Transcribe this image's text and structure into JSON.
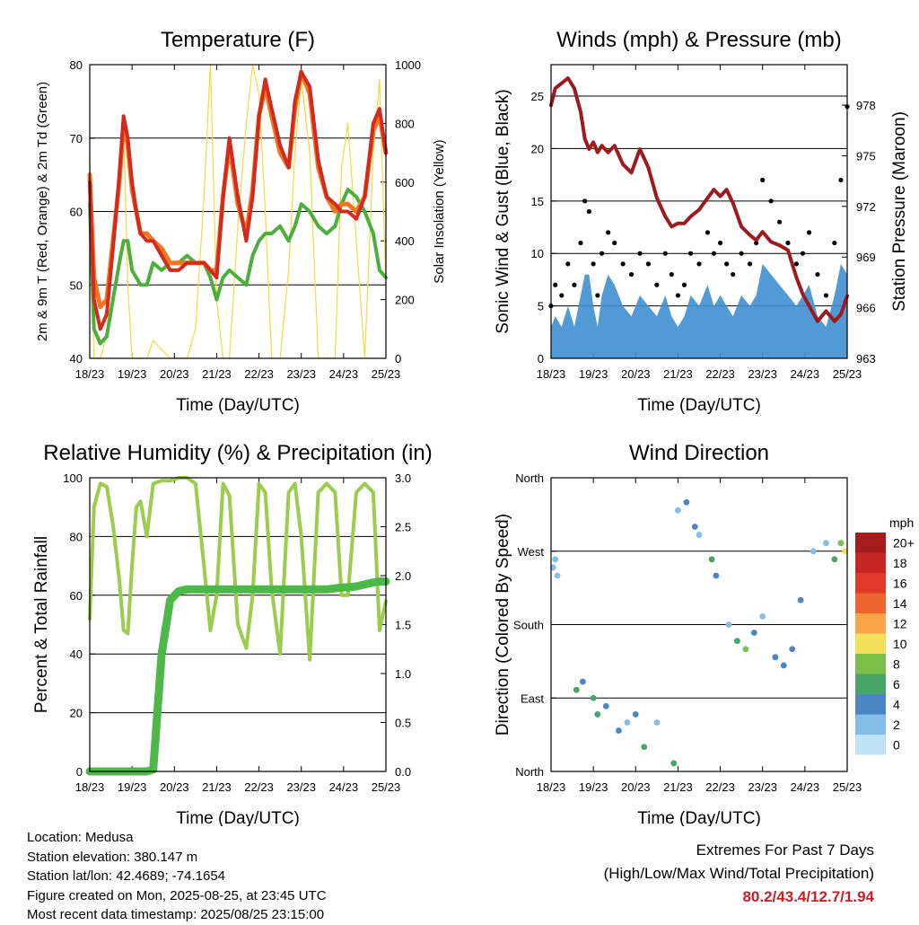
{
  "colors": {
    "red_2m": "#d42a1e",
    "orange_9m": "#f07820",
    "green_td": "#4caf3c",
    "solar": "#f5d842",
    "wind_blue": "#3f8fd2",
    "gust_black": "#000000",
    "pressure_maroon": "#9c1b1f",
    "rh_green": "#9acd4e",
    "precip_green": "#4cb848"
  },
  "x_ticks": [
    "18/23",
    "19/23",
    "20/23",
    "21/23",
    "22/23",
    "23/23",
    "24/23",
    "25/23"
  ],
  "chart_data": [
    {
      "type": "line",
      "title": "Temperature (F)",
      "xlabel": "Time (Day/UTC)",
      "ylabel": "2m & 9m T (Red, Orange) & 2m Td (Green)",
      "ylabel_right": "Solar Insolation (Yellow)",
      "ylim": [
        40,
        80
      ],
      "ylim_right": [
        0,
        1000
      ],
      "yticks": [
        40,
        50,
        60,
        70,
        80
      ],
      "yticks_right": [
        0,
        200,
        400,
        600,
        800,
        1000
      ],
      "x": [
        0,
        0.1,
        0.25,
        0.4,
        0.55,
        0.7,
        0.8,
        0.9,
        1.0,
        1.1,
        1.2,
        1.35,
        1.5,
        1.7,
        1.9,
        2.1,
        2.3,
        2.5,
        2.7,
        2.85,
        3.0,
        3.15,
        3.3,
        3.5,
        3.7,
        3.85,
        4.0,
        4.15,
        4.3,
        4.5,
        4.7,
        4.85,
        5.0,
        5.2,
        5.4,
        5.6,
        5.8,
        5.95,
        6.1,
        6.3,
        6.5,
        6.7,
        6.85,
        7.0
      ],
      "series": [
        {
          "name": "2m T",
          "values": [
            64,
            48,
            44,
            46,
            55,
            65,
            73,
            70,
            64,
            60,
            57,
            56,
            56,
            54,
            52,
            52,
            53,
            53,
            53,
            52,
            51,
            62,
            70,
            62,
            56,
            62,
            73,
            78,
            74,
            69,
            66,
            75,
            79,
            77,
            67,
            62,
            61,
            60,
            60,
            59,
            62,
            72,
            74,
            68
          ]
        },
        {
          "name": "9m T",
          "values": [
            65,
            51,
            47,
            48,
            56,
            64,
            72,
            69,
            63,
            60,
            57,
            57,
            56,
            55,
            53,
            53,
            53,
            53,
            53,
            52,
            52,
            62,
            69,
            61,
            57,
            63,
            73,
            77,
            73,
            68,
            66,
            74,
            79,
            76,
            66,
            62,
            60,
            61,
            61,
            60,
            62,
            71,
            73,
            68
          ]
        },
        {
          "name": "2m Td",
          "values": [
            61,
            44,
            42,
            43,
            48,
            53,
            56,
            56,
            52,
            51,
            50,
            50,
            53,
            52,
            53,
            53,
            54,
            53,
            53,
            51,
            48,
            51,
            52,
            51,
            50,
            54,
            56,
            57,
            57,
            58,
            56,
            58,
            61,
            60,
            58,
            57,
            58,
            61,
            63,
            62,
            60,
            57,
            52,
            51
          ]
        },
        {
          "name": "Solar",
          "values": [
            700,
            0,
            0,
            80,
            350,
            650,
            800,
            250,
            0,
            0,
            0,
            0,
            60,
            30,
            0,
            0,
            0,
            100,
            550,
            1000,
            200,
            0,
            0,
            450,
            800,
            1000,
            900,
            500,
            0,
            0,
            300,
            700,
            950,
            700,
            0,
            0,
            0,
            650,
            800,
            400,
            0,
            700,
            950,
            250
          ]
        }
      ]
    },
    {
      "type": "line",
      "title": "Winds (mph) & Pressure (mb)",
      "xlabel": "Time (Day/UTC)",
      "ylabel": "Sonic Wind & Gust (Blue, Black)",
      "ylabel_right": "Station Pressure (Maroon)",
      "ylim": [
        0,
        28
      ],
      "ylim_right": [
        963,
        980.4
      ],
      "yticks": [
        0,
        5,
        10,
        15,
        20,
        25
      ],
      "yticks_right": [
        963,
        966,
        969,
        972,
        975,
        978
      ],
      "x": [
        0,
        0.1,
        0.25,
        0.4,
        0.55,
        0.7,
        0.8,
        0.9,
        1.0,
        1.1,
        1.2,
        1.35,
        1.5,
        1.7,
        1.9,
        2.1,
        2.3,
        2.5,
        2.7,
        2.85,
        3.0,
        3.15,
        3.3,
        3.5,
        3.7,
        3.85,
        4.0,
        4.15,
        4.3,
        4.5,
        4.7,
        4.85,
        5.0,
        5.2,
        5.4,
        5.6,
        5.8,
        5.95,
        6.1,
        6.3,
        6.5,
        6.7,
        6.85,
        7.0
      ],
      "series": [
        {
          "name": "Sonic Wind",
          "values": [
            3,
            4,
            3,
            5,
            3,
            6,
            8,
            8,
            5,
            3,
            6,
            8,
            7,
            5,
            4,
            6,
            5,
            4,
            6,
            4,
            3,
            4,
            6,
            5,
            7,
            5,
            6,
            5,
            4,
            6,
            5,
            6,
            9,
            8,
            7,
            6,
            5,
            6,
            7,
            4,
            3,
            6,
            9,
            8
          ]
        },
        {
          "name": "Gust",
          "values": [
            5,
            7,
            6,
            9,
            7,
            11,
            15,
            14,
            9,
            6,
            10,
            12,
            11,
            9,
            8,
            10,
            9,
            7,
            10,
            8,
            6,
            7,
            10,
            9,
            12,
            10,
            11,
            9,
            8,
            10,
            9,
            11,
            17,
            15,
            13,
            11,
            9,
            10,
            12,
            8,
            6,
            11,
            17,
            24
          ]
        },
        {
          "name": "Pressure",
          "values": [
            978.0,
            979.0,
            979.3,
            979.6,
            979.0,
            977.6,
            976.0,
            975.4,
            975.8,
            975.2,
            975.6,
            975.2,
            975.6,
            974.5,
            974.0,
            975.4,
            974.3,
            972.5,
            971.4,
            970.8,
            971.0,
            971.0,
            971.4,
            971.8,
            972.5,
            973.0,
            972.6,
            973.0,
            972.2,
            970.8,
            970.3,
            970.0,
            970.5,
            969.9,
            969.7,
            969.4,
            967.8,
            966.8,
            966.1,
            965.2,
            965.8,
            965.2,
            965.6,
            966.7
          ]
        }
      ]
    },
    {
      "type": "line",
      "title": "Relative Humidity (%) & Precipitation (in)",
      "xlabel": "Time (Day/UTC)",
      "ylabel": "Percent & Total Rainfall",
      "ylim": [
        0,
        100
      ],
      "ylim_right": [
        0,
        3.0
      ],
      "yticks": [
        0,
        20,
        40,
        60,
        80,
        100
      ],
      "yticks_right": [
        "0.0",
        "0.5",
        "1.0",
        "1.5",
        "2.0",
        "2.5",
        "3.0"
      ],
      "x": [
        0,
        0.1,
        0.25,
        0.4,
        0.55,
        0.7,
        0.8,
        0.9,
        1.0,
        1.1,
        1.2,
        1.35,
        1.5,
        1.7,
        1.9,
        2.1,
        2.3,
        2.5,
        2.7,
        2.85,
        3.0,
        3.15,
        3.3,
        3.5,
        3.7,
        3.85,
        4.0,
        4.15,
        4.3,
        4.5,
        4.7,
        4.85,
        5.0,
        5.2,
        5.4,
        5.6,
        5.8,
        5.95,
        6.1,
        6.3,
        6.5,
        6.7,
        6.85,
        7.0
      ],
      "series": [
        {
          "name": "RH",
          "values": [
            52,
            90,
            98,
            97,
            84,
            65,
            48,
            47,
            70,
            90,
            92,
            80,
            98,
            99,
            99,
            100,
            100,
            98,
            70,
            48,
            60,
            98,
            94,
            50,
            42,
            60,
            98,
            95,
            62,
            40,
            95,
            98,
            80,
            38,
            95,
            98,
            95,
            60,
            60,
            95,
            98,
            95,
            48,
            58
          ]
        },
        {
          "name": "Precip",
          "values": [
            0,
            0,
            0,
            0,
            0,
            0,
            0,
            0,
            0,
            0,
            0,
            0,
            0.02,
            1.2,
            1.75,
            1.84,
            1.86,
            1.86,
            1.86,
            1.86,
            1.86,
            1.86,
            1.86,
            1.86,
            1.86,
            1.86,
            1.86,
            1.86,
            1.86,
            1.86,
            1.86,
            1.86,
            1.86,
            1.86,
            1.86,
            1.86,
            1.87,
            1.88,
            1.88,
            1.89,
            1.91,
            1.93,
            1.94,
            1.94
          ]
        }
      ]
    },
    {
      "type": "scatter",
      "title": "Wind Direction",
      "xlabel": "Time (Day/UTC)",
      "ylabel": "Direction (Colored By Speed)",
      "ylim": [
        0,
        360
      ],
      "yticks": [
        "North",
        "East",
        "South",
        "West",
        "North"
      ],
      "legend_title": "mph",
      "legend": [
        "20+",
        "18",
        "16",
        "14",
        "12",
        "10",
        "8",
        "6",
        "4",
        "2",
        "0"
      ],
      "legend_colors": [
        "#a41c1c",
        "#c92525",
        "#df3a2a",
        "#ef6530",
        "#f7a548",
        "#f1e05a",
        "#7cc04a",
        "#48a56a",
        "#4a86c4",
        "#84bde8",
        "#bfe3f6"
      ],
      "x": [
        0.05,
        0.1,
        0.15,
        0.6,
        0.75,
        1.0,
        1.1,
        1.3,
        1.6,
        1.8,
        2.0,
        2.2,
        2.5,
        2.9,
        3.0,
        3.2,
        3.4,
        3.5,
        3.8,
        3.9,
        4.2,
        4.4,
        4.6,
        4.8,
        5.0,
        5.3,
        5.5,
        5.7,
        5.9,
        6.2,
        6.5,
        6.7,
        6.85,
        6.95
      ],
      "y": [
        250,
        260,
        240,
        100,
        110,
        90,
        70,
        80,
        50,
        60,
        70,
        30,
        60,
        10,
        320,
        330,
        300,
        290,
        260,
        240,
        180,
        160,
        150,
        170,
        190,
        140,
        130,
        150,
        210,
        270,
        280,
        260,
        280,
        270
      ],
      "speed": [
        3,
        3,
        2,
        6,
        5,
        7,
        6,
        5,
        4,
        3,
        4,
        6,
        3,
        7,
        3,
        4,
        5,
        3,
        6,
        4,
        3,
        7,
        8,
        5,
        3,
        4,
        4,
        5,
        4,
        3,
        3,
        6,
        9,
        10
      ]
    }
  ],
  "info": {
    "location": "Location: Medusa",
    "elevation": "Station elevation: 380.147 m",
    "latlon": "Station lat/lon: 42.4689; -74.1654",
    "created": "Figure created on Mon, 2025-08-25, at 23:45 UTC",
    "timestamp": "Most recent data timestamp: 2025/08/25 23:15:00"
  },
  "extremes": {
    "title": "Extremes For Past 7 Days",
    "subtitle": "(High/Low/Max Wind/Total Precipitation)",
    "values": "80.2/43.4/12.7/1.94"
  }
}
